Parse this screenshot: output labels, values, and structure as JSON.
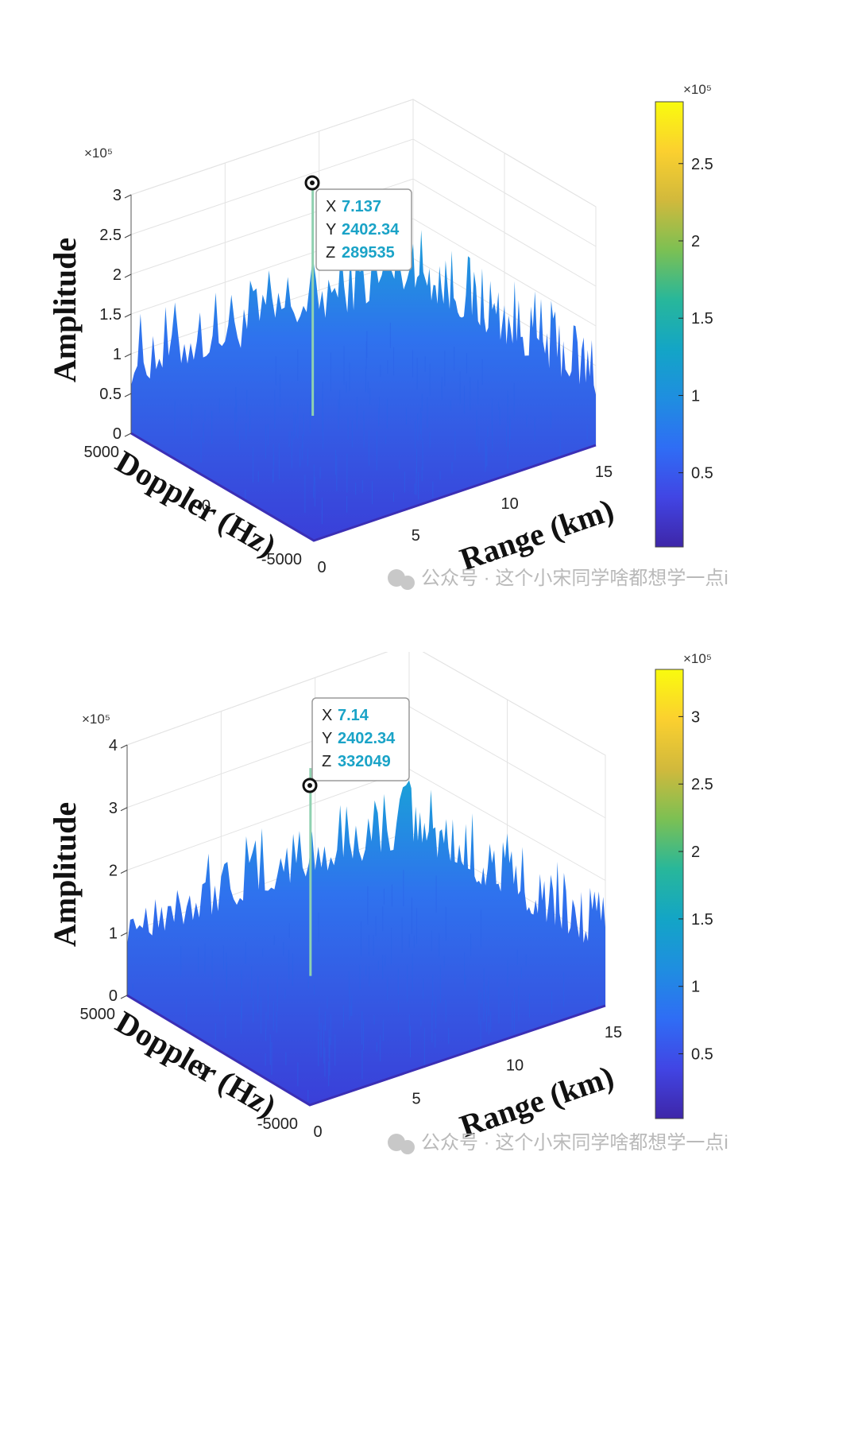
{
  "watermark": "公众号 · 这个小宋同学啥都想学一点i",
  "colormap": [
    "#3e26a8",
    "#4145e4",
    "#2f6df5",
    "#1f8ee0",
    "#13a5c6",
    "#28b79a",
    "#7cc053",
    "#d1b93c",
    "#fbd02f",
    "#f9fb0e"
  ],
  "surface_color": "#2f72ee",
  "chart_data": [
    {
      "type": "surface3d",
      "title": "",
      "xlabel": "Range (km)",
      "ylabel": "Doppler (Hz)",
      "zlabel": "Amplitude",
      "x_ticks": [
        "0",
        "5",
        "10",
        "15"
      ],
      "y_ticks": [
        "-5000",
        "0",
        "5000"
      ],
      "z_ticks": [
        "0",
        "0.5",
        "1",
        "1.5",
        "2",
        "2.5",
        "3"
      ],
      "zlim": [
        0,
        3
      ],
      "z_exponent": "×10⁵",
      "colorbar": {
        "ticks": [
          "0.5",
          "1",
          "1.5",
          "2",
          "2.5"
        ],
        "range": [
          0.02,
          2.9
        ],
        "exponent": "×10⁵"
      },
      "noise_level": [
        0.6,
        1.5
      ],
      "datatip": {
        "x_label": "X",
        "x_value": "7.137",
        "y_label": "Y",
        "y_value": "2402.34",
        "z_label": "Z",
        "z_value": "289535"
      },
      "peak": {
        "range_km": 7.137,
        "doppler_hz": 2402.34,
        "amplitude": 289535
      }
    },
    {
      "type": "surface3d",
      "title": "",
      "xlabel": "Range (km)",
      "ylabel": "Doppler (Hz)",
      "zlabel": "Amplitude",
      "x_ticks": [
        "0",
        "5",
        "10",
        "15"
      ],
      "y_ticks": [
        "-5000",
        "0",
        "5000"
      ],
      "z_ticks": [
        "0",
        "1",
        "2",
        "3",
        "4"
      ],
      "zlim": [
        0,
        4
      ],
      "z_exponent": "×10⁵",
      "colorbar": {
        "ticks": [
          "0.5",
          "1",
          "1.5",
          "2",
          "2.5",
          "3"
        ],
        "range": [
          0.02,
          3.35
        ],
        "exponent": "×10⁵"
      },
      "noise_level": [
        0.8,
        1.9
      ],
      "datatip": {
        "x_label": "X",
        "x_value": "7.14",
        "y_label": "Y",
        "y_value": "2402.34",
        "z_label": "Z",
        "z_value": "332049"
      },
      "peak": {
        "range_km": 7.14,
        "doppler_hz": 2402.34,
        "amplitude": 332049
      }
    }
  ]
}
